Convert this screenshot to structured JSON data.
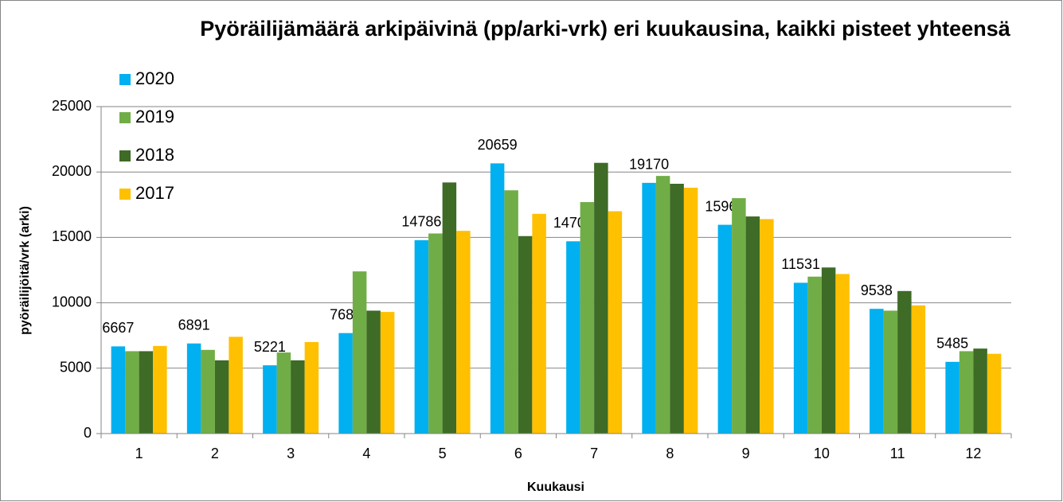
{
  "chart_data": {
    "type": "bar",
    "title": "Pyöräilijämäärä arkipäivinä (pp/arki-vrk) eri kuukausina, kaikki pisteet yhteensä",
    "x_label": "Kuukausi",
    "y_label": "pyöräilijöitä/vrk (arki)",
    "categories": [
      "1",
      "2",
      "3",
      "4",
      "5",
      "6",
      "7",
      "8",
      "9",
      "10",
      "11",
      "12"
    ],
    "series": [
      {
        "name": "2020",
        "color": "#00b0f0",
        "show_labels": true,
        "values": [
          6667,
          6891,
          5221,
          7685,
          14786,
          20659,
          14703,
          19170,
          15964,
          11531,
          9538,
          5485
        ]
      },
      {
        "name": "2019",
        "color": "#70ad47",
        "show_labels": false,
        "values": [
          6300,
          6400,
          6200,
          12400,
          15300,
          18600,
          17700,
          19700,
          18000,
          12000,
          9400,
          6300
        ]
      },
      {
        "name": "2018",
        "color": "#3e6b26",
        "show_labels": false,
        "values": [
          6300,
          5600,
          5600,
          9400,
          19200,
          15100,
          20700,
          19100,
          16600,
          12700,
          10900,
          6500
        ]
      },
      {
        "name": "2017",
        "color": "#ffc000",
        "show_labels": false,
        "values": [
          6700,
          7400,
          7000,
          9300,
          15500,
          16800,
          17000,
          18800,
          16400,
          12200,
          9800,
          6100
        ]
      }
    ],
    "ylim": [
      0,
      25000
    ],
    "yticks": [
      0,
      5000,
      10000,
      15000,
      20000,
      25000
    ],
    "grid": true,
    "legend": "top-left"
  }
}
